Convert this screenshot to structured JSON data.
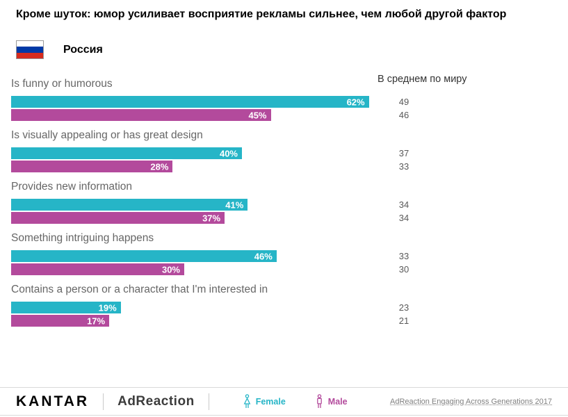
{
  "title": "Кроме шуток: юмор усиливает восприятие рекламы сильнее, чем любой другой фактор",
  "country": {
    "name": "Россия",
    "flag_colors": [
      "#ffffff",
      "#0039a6",
      "#d52b1e"
    ]
  },
  "world_avg_header": "В среднем по миру",
  "colors": {
    "female": "#26b5c7",
    "male": "#b34a9c"
  },
  "chart_data": {
    "type": "bar",
    "orientation": "horizontal",
    "xlim": [
      0,
      100
    ],
    "series_names": [
      "Female",
      "Male"
    ],
    "categories": [
      "Is funny or humorous",
      "Is visually appealing or has great design",
      "Provides new information",
      "Something intriguing happens",
      "Contains a person or a character that I'm interested in"
    ],
    "groups": [
      {
        "label": "Is funny or humorous",
        "female": {
          "value": 62,
          "text": "62%"
        },
        "male": {
          "value": 45,
          "text": "45%"
        },
        "world_avg": {
          "female": "49",
          "male": "46"
        }
      },
      {
        "label": "Is visually appealing or has great design",
        "female": {
          "value": 40,
          "text": "40%"
        },
        "male": {
          "value": 28,
          "text": "28%"
        },
        "world_avg": {
          "female": "37",
          "male": "33"
        }
      },
      {
        "label": "Provides new information",
        "female": {
          "value": 41,
          "text": "41%"
        },
        "male": {
          "value": 37,
          "text": "37%"
        },
        "world_avg": {
          "female": "34",
          "male": "34"
        }
      },
      {
        "label": "Something intriguing happens",
        "female": {
          "value": 46,
          "text": "46%"
        },
        "male": {
          "value": 30,
          "text": "30%"
        },
        "world_avg": {
          "female": "33",
          "male": "30"
        }
      },
      {
        "label": "Contains a person or a character that I'm interested in",
        "female": {
          "value": 19,
          "text": "19%"
        },
        "male": {
          "value": 17,
          "text": "17%"
        },
        "world_avg": {
          "female": "23",
          "male": "21"
        }
      }
    ]
  },
  "footer": {
    "brand": "KANTAR",
    "product": "AdReaction",
    "legend": {
      "female_label": "Female",
      "male_label": "Male"
    },
    "source": "AdReaction Engaging Across Generations 2017"
  }
}
